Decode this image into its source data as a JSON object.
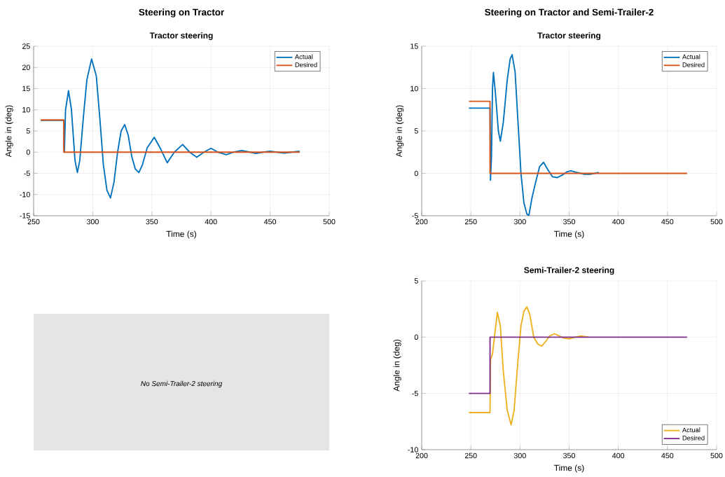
{
  "chart_data": [
    {
      "type": "line",
      "title": "Steering on Tractor",
      "subtitle": "Tractor steering",
      "xlabel": "Time (s)",
      "ylabel": "Angle in (deg)",
      "xlim": [
        250,
        500
      ],
      "ylim": [
        -15,
        25
      ],
      "xticks": [
        250,
        300,
        350,
        400,
        450,
        500
      ],
      "yticks": [
        -15,
        -10,
        -5,
        0,
        5,
        10,
        15,
        20,
        25
      ],
      "grid": true,
      "legend": "top right",
      "series": [
        {
          "name": "Actual",
          "color": "#0072bd",
          "x": [
            256,
            275.5,
            276,
            277,
            279.5,
            282,
            285,
            287,
            289,
            292,
            295,
            299,
            303,
            306,
            309,
            312,
            315,
            318,
            321,
            324,
            327,
            330,
            333,
            336,
            339,
            342,
            346,
            352,
            357,
            363,
            369,
            376,
            382,
            388,
            394,
            400,
            406,
            413,
            419,
            426,
            433,
            438,
            444,
            450,
            456,
            462,
            468,
            475
          ],
          "values": [
            7.5,
            7.5,
            0,
            10,
            14.5,
            10,
            -2,
            -4.8,
            -2,
            8,
            17,
            22,
            18,
            8,
            -3,
            -9,
            -10.8,
            -7,
            0,
            5,
            6.5,
            4,
            -1,
            -4,
            -4.8,
            -3,
            1,
            3.5,
            1,
            -2.5,
            0,
            1.8,
            0,
            -1.2,
            0,
            0.9,
            0,
            -0.6,
            0,
            0.4,
            0,
            -0.3,
            0,
            0.2,
            0,
            -0.2,
            0,
            0.2
          ]
        },
        {
          "name": "Desired",
          "color": "#d95319",
          "x": [
            256,
            275.5,
            275.5,
            475
          ],
          "values": [
            7.6,
            7.6,
            0,
            0
          ]
        }
      ]
    },
    {
      "type": "line",
      "title": "Steering on Tractor and Semi-Trailer-2",
      "subtitle": "Tractor steering",
      "xlabel": "Time (s)",
      "ylabel": "Angle in (deg)",
      "xlim": [
        200,
        500
      ],
      "ylim": [
        -5,
        15
      ],
      "xticks": [
        200,
        250,
        300,
        350,
        400,
        450,
        500
      ],
      "yticks": [
        -5,
        0,
        5,
        10,
        15
      ],
      "grid": true,
      "legend": "top right",
      "series": [
        {
          "name": "Actual",
          "color": "#0072bd",
          "x": [
            248,
            269.5,
            270,
            271,
            272,
            273,
            275,
            278,
            280,
            283,
            287,
            290,
            292,
            295,
            298,
            301,
            304,
            307,
            309,
            312,
            316,
            320,
            324,
            328,
            333,
            338,
            343,
            348,
            352,
            358,
            365,
            372,
            380
          ],
          "values": [
            7.7,
            7.7,
            -0.8,
            2,
            10,
            11.9,
            9.5,
            5,
            3.8,
            6,
            11,
            13.5,
            14,
            12,
            6,
            0,
            -3.5,
            -4.8,
            -5,
            -3,
            -1,
            0.8,
            1.3,
            0.5,
            -0.4,
            -0.5,
            -0.2,
            0.2,
            0.3,
            0.1,
            -0.1,
            -0.1,
            0.1
          ]
        },
        {
          "name": "Desired",
          "color": "#d95319",
          "x": [
            248,
            269.5,
            269.5,
            470
          ],
          "values": [
            8.5,
            8.5,
            0,
            0
          ]
        }
      ]
    },
    {
      "type": "other",
      "annotations": [
        "No Semi-Trailer-2 steering"
      ]
    },
    {
      "type": "line",
      "title": "Semi-Trailer-2 steering",
      "xlabel": "Time (s)",
      "ylabel": "Angle in (deg)",
      "xlim": [
        200,
        500
      ],
      "ylim": [
        -10,
        5
      ],
      "xticks": [
        200,
        250,
        300,
        350,
        400,
        450,
        500
      ],
      "yticks": [
        -10,
        -5,
        0,
        5
      ],
      "grid": true,
      "legend": "bottom right",
      "series": [
        {
          "name": "Actual",
          "color": "#edb120",
          "x": [
            248,
            269.5,
            270,
            272,
            274,
            277,
            280,
            283,
            287,
            291,
            294,
            298,
            301,
            304,
            307,
            310,
            314,
            318,
            322,
            326,
            330,
            335,
            340,
            345,
            350,
            356,
            362,
            370
          ],
          "values": [
            -6.7,
            -6.7,
            -2,
            -1.5,
            0,
            2.2,
            1,
            -3,
            -6.5,
            -7.8,
            -6.5,
            -2,
            1,
            2.3,
            2.7,
            2,
            0,
            -0.6,
            -0.8,
            -0.4,
            0.1,
            0.3,
            0.1,
            -0.1,
            -0.15,
            0,
            0.1,
            0
          ]
        },
        {
          "name": "Desired",
          "color": "#7e2f8e",
          "x": [
            248,
            269.5,
            269.5,
            470
          ],
          "values": [
            -5,
            -5,
            0,
            0
          ]
        }
      ]
    }
  ]
}
